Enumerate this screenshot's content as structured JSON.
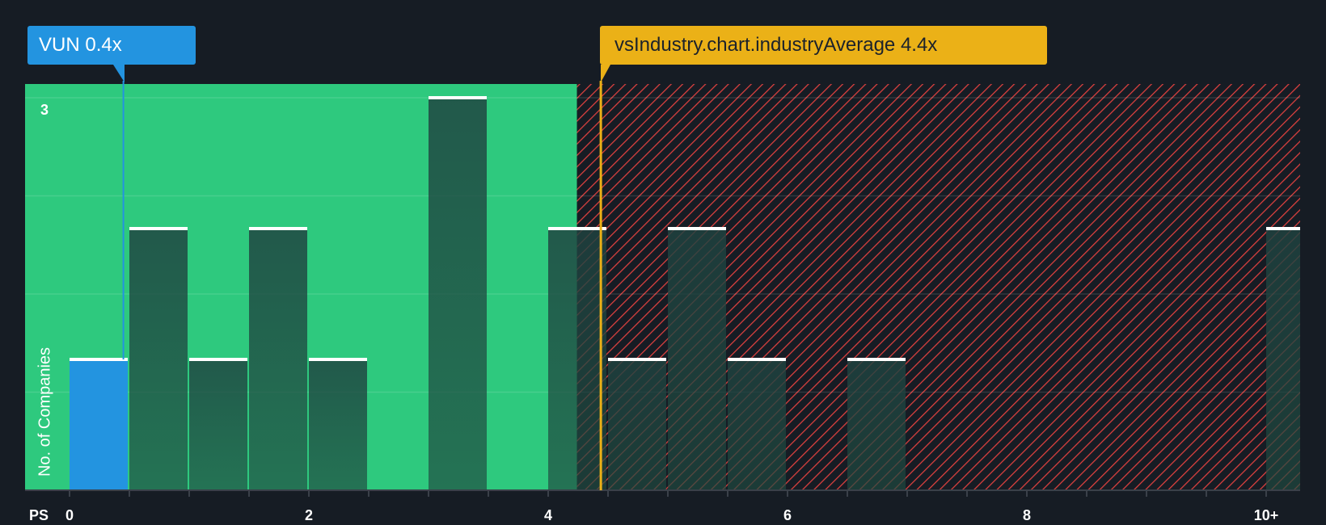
{
  "callouts": {
    "company": {
      "label": "VUN 0.4x",
      "value": 0.45,
      "color": "#2394e0"
    },
    "industry": {
      "label": "vsIndustry.chart.industryAverage 4.4x",
      "value": 4.44,
      "color": "#ebb117"
    }
  },
  "axis": {
    "x_title": "PS",
    "y_title": "No. of Companies",
    "x_ticks": [
      "0",
      "2",
      "4",
      "6",
      "8",
      "10+"
    ],
    "y_tick_top": "3"
  },
  "colors": {
    "background": "#161c24",
    "good_zone": "#2ec97e",
    "bad_zone_hatch": "#e0413f",
    "bar_dark": "#1f4a40",
    "bar_company": "#2394e0",
    "bar_cap": "#ffffff",
    "axis_line": "#3a4049"
  },
  "chart_data": {
    "type": "bar",
    "title": "",
    "xlabel": "PS",
    "ylabel": "No. of Companies",
    "categories": [
      "0-0.5",
      "0.5-1",
      "1-1.5",
      "1.5-2",
      "2-2.5",
      "2.5-3",
      "3-3.5",
      "3.5-4",
      "4-4.5",
      "4.5-5",
      "5-5.5",
      "5.5-6",
      "6-6.5",
      "6.5-7",
      "7-7.5",
      "7.5-8",
      "8-8.5",
      "8.5-9",
      "9-9.5",
      "9.5-10",
      "10+"
    ],
    "series": [
      {
        "name": "No. of Companies",
        "values": [
          1,
          2,
          1,
          2,
          1,
          0,
          3,
          0,
          2,
          1,
          2,
          1,
          0,
          1,
          0,
          0,
          0,
          0,
          0,
          0,
          2
        ]
      }
    ],
    "highlight_bin": 0,
    "company_value": 0.4,
    "industry_average": 4.4,
    "good_zone_max": 4.24,
    "x_tick_labels": [
      "0",
      "2",
      "4",
      "6",
      "8",
      "10+"
    ],
    "ylim": [
      0,
      3.1
    ],
    "grid": true,
    "legend": "none"
  }
}
